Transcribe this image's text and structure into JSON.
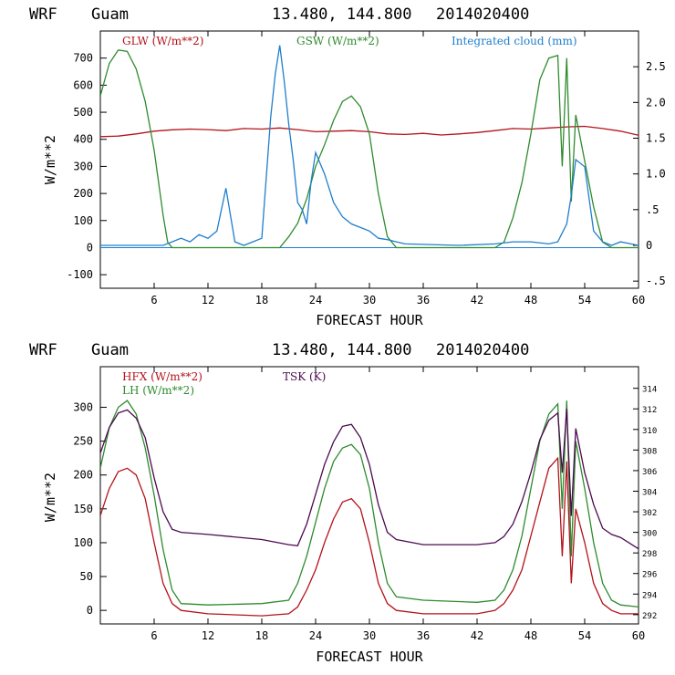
{
  "chart_data": [
    {
      "type": "line",
      "header": {
        "model": "WRF",
        "site": "Guam",
        "coords": "13.480, 144.800",
        "init": "2014020400"
      },
      "xlabel": "FORECAST HOUR",
      "ylabel": "W/m**2",
      "xlim": [
        0,
        60
      ],
      "ylim": [
        -150,
        800
      ],
      "y2lim": [
        -0.6,
        3.0
      ],
      "xticks": [
        "6",
        "12",
        "18",
        "24",
        "30",
        "36",
        "42",
        "48",
        "54",
        "60"
      ],
      "yticks": [
        "-100",
        "0",
        "100",
        "200",
        "300",
        "400",
        "500",
        "600",
        "700"
      ],
      "y2ticks": [
        "-.5",
        "0",
        ".5",
        "1.0",
        "1.5",
        "2.0",
        "2.5"
      ],
      "series": [
        {
          "name": "GLW (W/m**2)",
          "color": "#b3131b",
          "axis": "left",
          "x": [
            0,
            2,
            4,
            6,
            8,
            10,
            12,
            14,
            16,
            18,
            20,
            22,
            24,
            26,
            28,
            30,
            32,
            34,
            36,
            38,
            40,
            42,
            44,
            46,
            48,
            50,
            52,
            54,
            56,
            58,
            60
          ],
          "values": [
            410,
            412,
            420,
            430,
            435,
            438,
            436,
            432,
            440,
            438,
            442,
            436,
            428,
            430,
            432,
            428,
            420,
            418,
            422,
            416,
            420,
            425,
            432,
            440,
            438,
            442,
            446,
            448,
            440,
            430,
            415
          ]
        },
        {
          "name": "GSW (W/m**2)",
          "color": "#2e8b2e",
          "axis": "left",
          "x": [
            0,
            1,
            2,
            3,
            4,
            5,
            6,
            7,
            7.5,
            8,
            19,
            20,
            21,
            22,
            23,
            24,
            25,
            26,
            27,
            28,
            29,
            30,
            31,
            32,
            33,
            44,
            45,
            46,
            47,
            48,
            49,
            50,
            51,
            51.5,
            52,
            52.5,
            53,
            54,
            55,
            56,
            57,
            60
          ],
          "values": [
            560,
            680,
            730,
            725,
            660,
            540,
            360,
            120,
            20,
            0,
            0,
            0,
            40,
            90,
            180,
            300,
            380,
            470,
            540,
            560,
            520,
            420,
            200,
            40,
            0,
            0,
            20,
            110,
            240,
            420,
            620,
            700,
            710,
            300,
            700,
            170,
            490,
            320,
            150,
            20,
            0,
            0
          ]
        },
        {
          "name": "Integrated cloud (mm)",
          "color": "#1f7ecc",
          "axis": "right",
          "x": [
            0,
            7,
            8,
            9,
            10,
            11,
            12,
            13,
            14,
            15,
            16,
            17,
            18,
            19,
            19.5,
            20,
            20.5,
            21,
            21.5,
            22,
            22.5,
            23,
            23.5,
            24,
            25,
            26,
            27,
            28,
            29,
            30,
            31,
            32,
            33,
            34,
            40,
            44,
            46,
            48,
            50,
            51,
            52,
            52.5,
            53,
            54,
            55,
            56,
            57,
            58,
            60
          ],
          "values": [
            0,
            0,
            0.05,
            0.1,
            0.05,
            0.15,
            0.1,
            0.2,
            0.8,
            0.05,
            0,
            0.05,
            0.1,
            1.8,
            2.4,
            2.8,
            2.3,
            1.7,
            1.2,
            0.6,
            0.5,
            0.3,
            0.9,
            1.3,
            1.0,
            0.6,
            0.4,
            0.3,
            0.25,
            0.2,
            0.1,
            0.08,
            0.05,
            0.02,
            0,
            0.02,
            0.05,
            0.05,
            0.02,
            0.05,
            0.3,
            0.7,
            1.2,
            1.1,
            0.2,
            0.05,
            0,
            0.05,
            0
          ]
        }
      ]
    },
    {
      "type": "line",
      "header": {
        "model": "WRF",
        "site": "Guam",
        "coords": "13.480, 144.800",
        "init": "2014020400"
      },
      "xlabel": "FORECAST HOUR",
      "ylabel": "W/m**2",
      "xlim": [
        0,
        60
      ],
      "ylim": [
        -20,
        360
      ],
      "y2lim": [
        291.1,
        316.1
      ],
      "xticks": [
        "6",
        "12",
        "18",
        "24",
        "30",
        "36",
        "42",
        "48",
        "54",
        "60"
      ],
      "yticks": [
        "0",
        "50",
        "100",
        "150",
        "200",
        "250",
        "300"
      ],
      "y2ticks": [
        "292",
        "294",
        "296",
        "298",
        "300",
        "302",
        "304",
        "306",
        "308",
        "310",
        "312",
        "314"
      ],
      "series": [
        {
          "name": "HFX (W/m**2)",
          "color": "#b3131b",
          "axis": "left",
          "x": [
            0,
            1,
            2,
            3,
            4,
            5,
            6,
            7,
            8,
            9,
            12,
            18,
            21,
            22,
            23,
            24,
            25,
            26,
            27,
            28,
            29,
            30,
            31,
            32,
            33,
            36,
            42,
            44,
            45,
            46,
            47,
            48,
            49,
            50,
            51,
            51.5,
            52,
            52.5,
            53,
            54,
            55,
            56,
            57,
            58,
            60
          ],
          "values": [
            140,
            180,
            205,
            210,
            200,
            165,
            100,
            40,
            10,
            0,
            -5,
            -8,
            -5,
            5,
            30,
            60,
            100,
            135,
            160,
            165,
            150,
            100,
            40,
            10,
            0,
            -5,
            -5,
            0,
            10,
            30,
            60,
            110,
            160,
            210,
            225,
            80,
            220,
            40,
            150,
            100,
            40,
            10,
            0,
            -5,
            -5
          ]
        },
        {
          "name": "LH (W/m**2)",
          "color": "#2e8b2e",
          "axis": "left",
          "x": [
            0,
            1,
            2,
            3,
            4,
            5,
            6,
            7,
            8,
            9,
            12,
            18,
            21,
            22,
            23,
            24,
            25,
            26,
            27,
            28,
            29,
            30,
            31,
            32,
            33,
            36,
            42,
            44,
            45,
            46,
            47,
            48,
            49,
            50,
            51,
            51.5,
            52,
            52.5,
            53,
            54,
            55,
            56,
            57,
            58,
            60
          ],
          "values": [
            210,
            270,
            300,
            310,
            290,
            240,
            170,
            90,
            30,
            10,
            8,
            10,
            15,
            40,
            80,
            130,
            180,
            220,
            240,
            245,
            230,
            180,
            100,
            40,
            20,
            15,
            12,
            15,
            30,
            60,
            110,
            180,
            250,
            290,
            305,
            150,
            310,
            80,
            250,
            180,
            100,
            40,
            15,
            8,
            5
          ]
        },
        {
          "name": "TSK (K)",
          "color": "#4b0a4f",
          "axis": "right",
          "x": [
            0,
            1,
            2,
            3,
            4,
            5,
            6,
            7,
            8,
            9,
            12,
            18,
            21,
            22,
            23,
            24,
            25,
            26,
            27,
            28,
            29,
            30,
            31,
            32,
            33,
            36,
            42,
            44,
            45,
            46,
            47,
            48,
            49,
            50,
            51,
            51.5,
            52,
            52.5,
            53,
            54,
            55,
            56,
            57,
            58,
            60
          ],
          "values": [
            307.7,
            310.2,
            311.6,
            311.9,
            311.1,
            309.2,
            305.3,
            302.0,
            300.3,
            300.0,
            299.8,
            299.3,
            298.8,
            298.7,
            300.8,
            303.7,
            306.6,
            308.8,
            310.3,
            310.5,
            309.2,
            306.6,
            302.7,
            300.0,
            299.3,
            298.8,
            298.8,
            299.0,
            299.6,
            300.8,
            303.0,
            305.8,
            309.0,
            310.9,
            311.6,
            305.8,
            312.0,
            301.6,
            310.1,
            305.8,
            302.7,
            300.4,
            299.8,
            299.5,
            298.4
          ]
        }
      ]
    }
  ]
}
